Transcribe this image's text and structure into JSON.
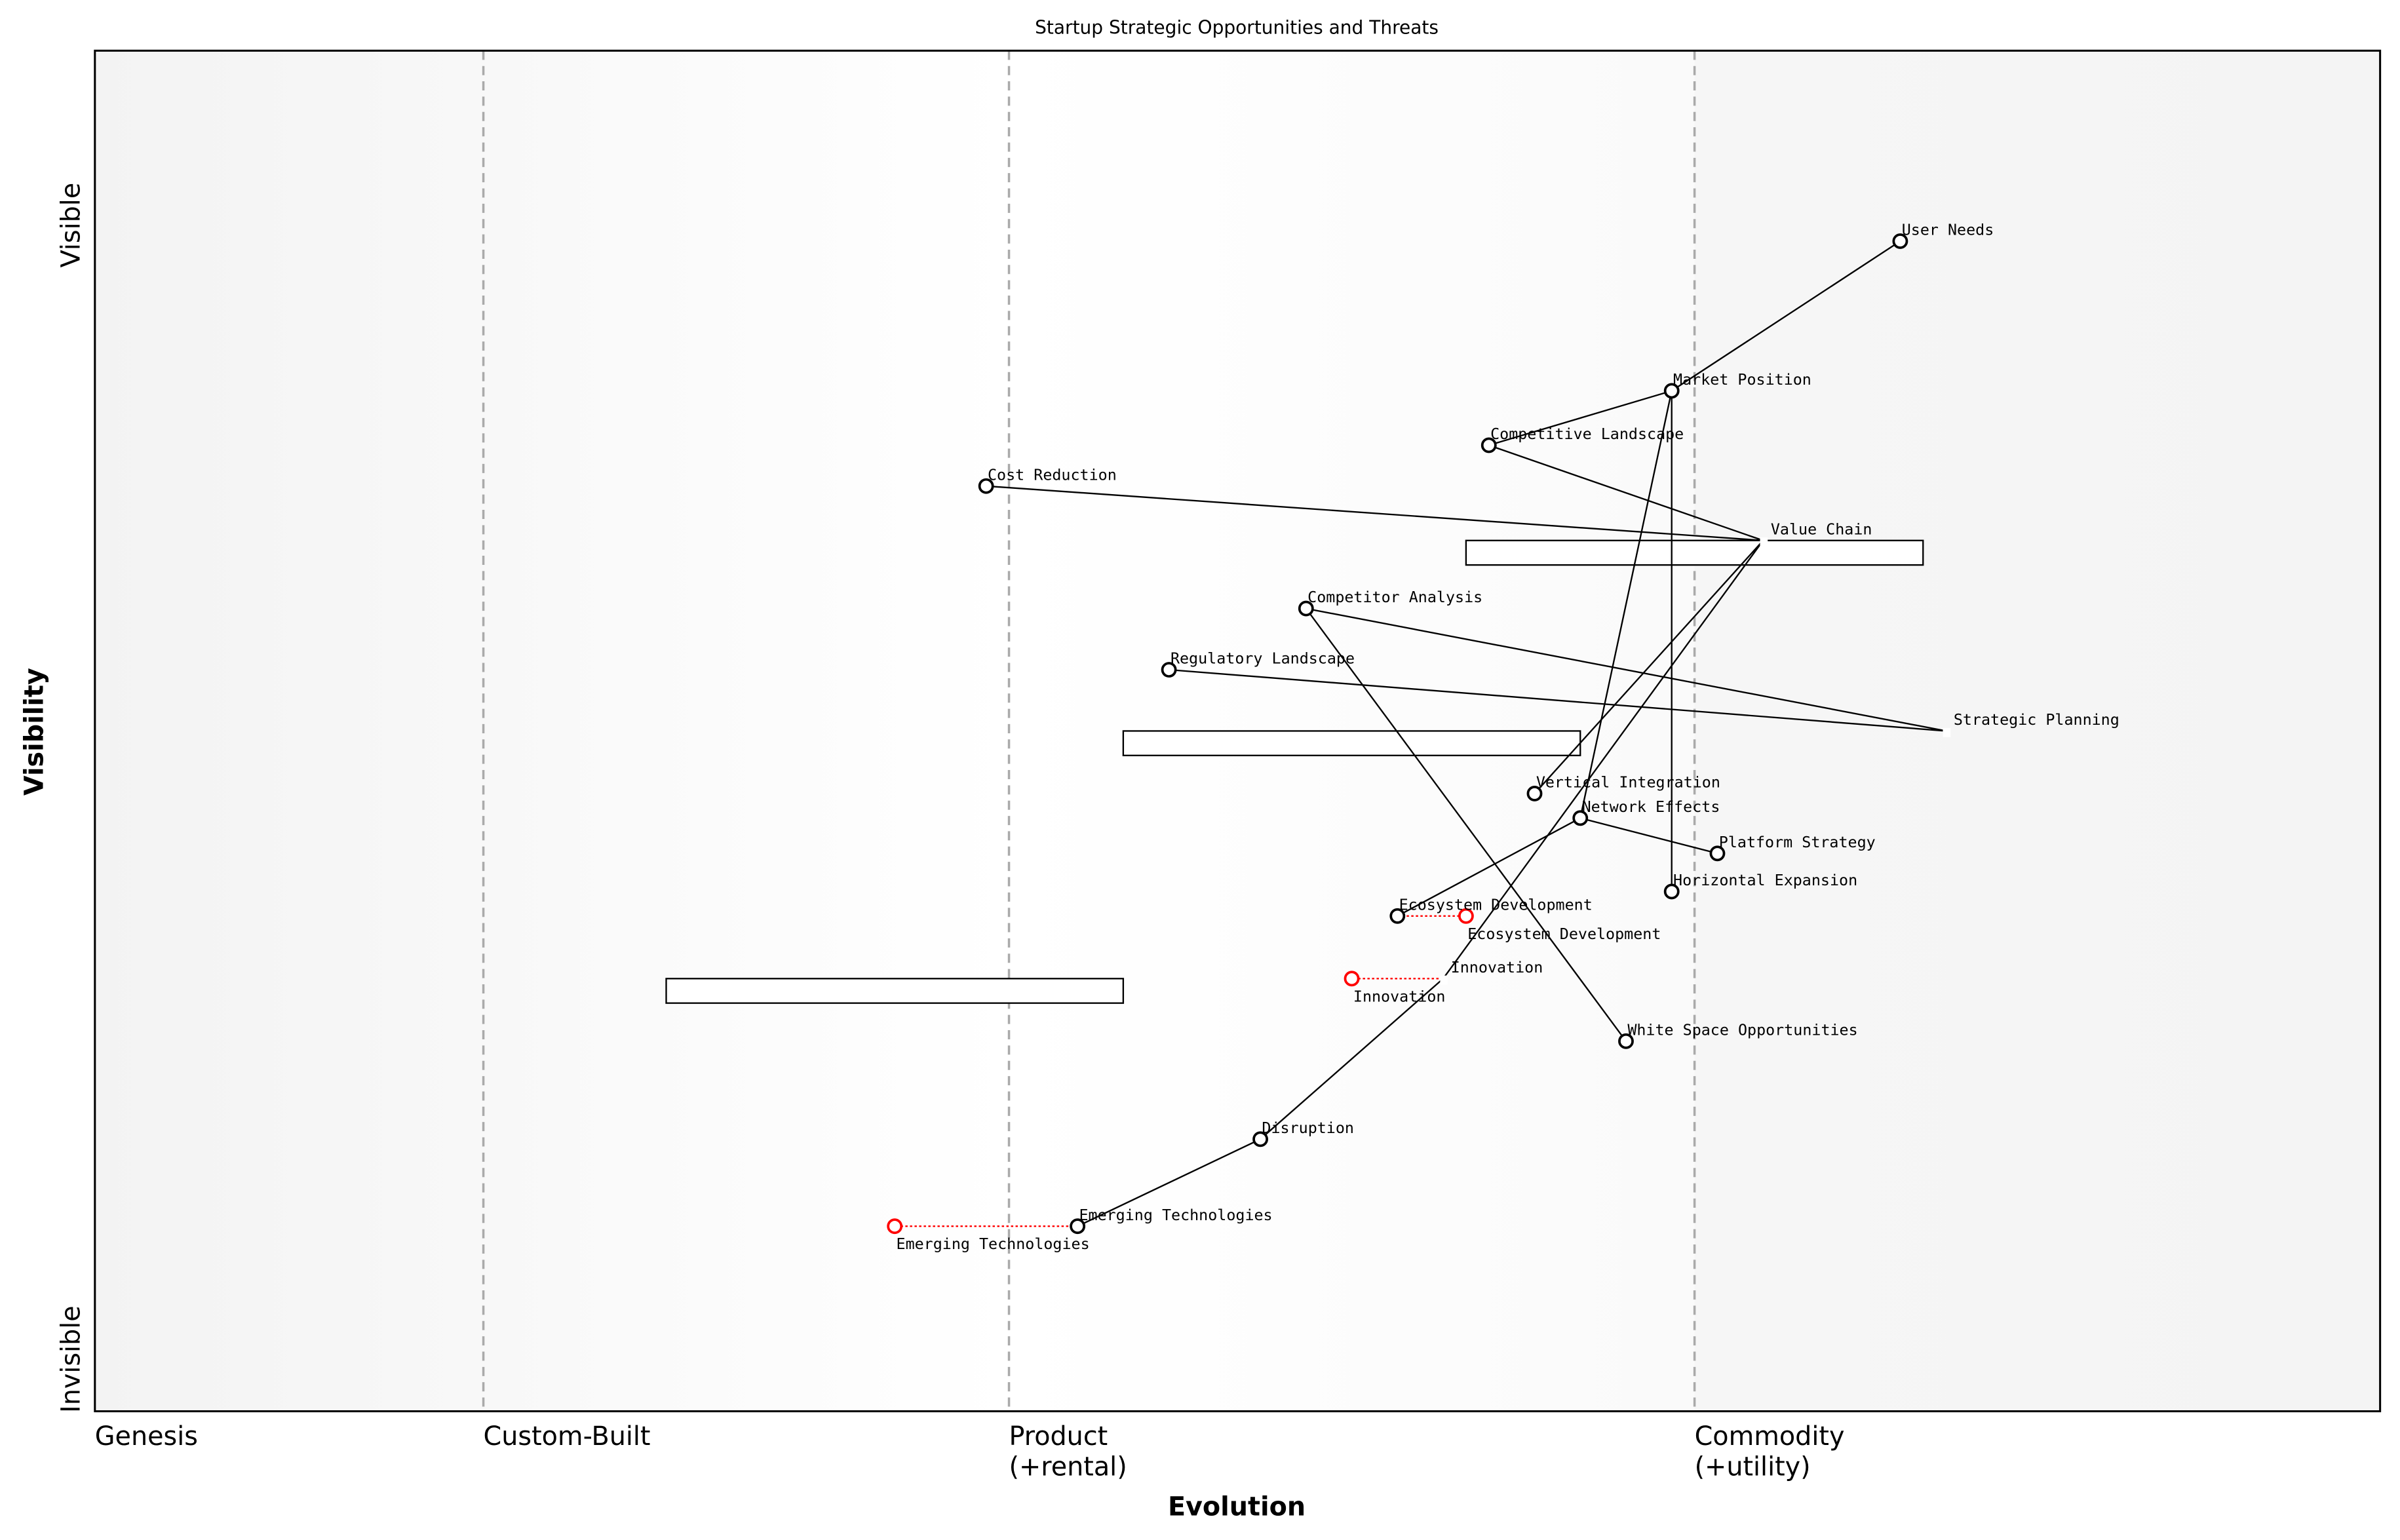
{
  "chart_data": {
    "type": "wardley-map",
    "title": "Startup Strategic Opportunities and Threats",
    "xlabel": "Evolution",
    "ylabel": "Visibility",
    "xlim": [
      0,
      1
    ],
    "ylim": [
      0,
      1
    ],
    "y_ends": {
      "top": "Visible",
      "bottom": "Invisible"
    },
    "stages": [
      {
        "label": "Genesis",
        "evolution": 0.0,
        "line": false
      },
      {
        "label": "Custom-Built",
        "evolution": 0.17,
        "line": true
      },
      {
        "label": "Product\n(+rental)",
        "evolution": 0.4,
        "line": true
      },
      {
        "label": "Commodity\n(+utility)",
        "evolution": 0.7,
        "line": true
      }
    ],
    "components": [
      {
        "name": "User Needs",
        "evolution": 0.79,
        "visibility": 0.86,
        "marker": "circle"
      },
      {
        "name": "Market Position",
        "evolution": 0.69,
        "visibility": 0.75,
        "marker": "circle"
      },
      {
        "name": "Competitive Landscape",
        "evolution": 0.61,
        "visibility": 0.71,
        "marker": "circle"
      },
      {
        "name": "Cost Reduction",
        "evolution": 0.39,
        "visibility": 0.68,
        "marker": "circle"
      },
      {
        "name": "Value Chain",
        "evolution": 0.73,
        "visibility": 0.64,
        "marker": "anchor"
      },
      {
        "name": "Competitor Analysis",
        "evolution": 0.53,
        "visibility": 0.59,
        "marker": "circle"
      },
      {
        "name": "Regulatory Landscape",
        "evolution": 0.47,
        "visibility": 0.545,
        "marker": "circle"
      },
      {
        "name": "Strategic Planning",
        "evolution": 0.81,
        "visibility": 0.5,
        "marker": "anchor"
      },
      {
        "name": "Vertical Integration",
        "evolution": 0.63,
        "visibility": 0.454,
        "marker": "circle"
      },
      {
        "name": "Network Effects",
        "evolution": 0.65,
        "visibility": 0.436,
        "marker": "circle"
      },
      {
        "name": "Platform Strategy",
        "evolution": 0.71,
        "visibility": 0.41,
        "marker": "circle"
      },
      {
        "name": "Horizontal Expansion",
        "evolution": 0.69,
        "visibility": 0.382,
        "marker": "circle"
      },
      {
        "name": "Ecosystem Development",
        "evolution": 0.57,
        "visibility": 0.364,
        "marker": "circle"
      },
      {
        "name": "Innovation",
        "evolution": 0.59,
        "visibility": 0.318,
        "marker": "anchor"
      },
      {
        "name": "White Space Opportunities",
        "evolution": 0.67,
        "visibility": 0.272,
        "marker": "circle"
      },
      {
        "name": "Disruption",
        "evolution": 0.51,
        "visibility": 0.2,
        "marker": "circle"
      },
      {
        "name": "Emerging Technologies",
        "evolution": 0.43,
        "visibility": 0.136,
        "marker": "circle"
      }
    ],
    "links": [
      [
        "User Needs",
        "Market Position"
      ],
      [
        "Market Position",
        "Competitive Landscape"
      ],
      [
        "Market Position",
        "Horizontal Expansion"
      ],
      [
        "Market Position",
        "Network Effects"
      ],
      [
        "Competitive Landscape",
        "Value Chain"
      ],
      [
        "Cost Reduction",
        "Value Chain"
      ],
      [
        "Value Chain",
        "Vertical Integration"
      ],
      [
        "Value Chain",
        "Innovation"
      ],
      [
        "Innovation",
        "Disruption"
      ],
      [
        "Disruption",
        "Emerging Technologies"
      ],
      [
        "Competitor Analysis",
        "Strategic Planning"
      ],
      [
        "Competitor Analysis",
        "White Space Opportunities"
      ],
      [
        "Regulatory Landscape",
        "Strategic Planning"
      ],
      [
        "Network Effects",
        "Platform Strategy"
      ],
      [
        "Network Effects",
        "Ecosystem Development"
      ]
    ],
    "evolutions": [
      {
        "component": "Ecosystem Development",
        "to_evolution": 0.6,
        "label": "Ecosystem Development"
      },
      {
        "component": "Innovation",
        "to_evolution": 0.55,
        "label": "Innovation"
      },
      {
        "component": "Emerging Technologies",
        "to_evolution": 0.35,
        "label": "Emerging Technologies"
      }
    ],
    "pipelines": [
      {
        "visibility": 0.64,
        "start": 0.6,
        "end": 0.8
      },
      {
        "visibility": 0.5,
        "start": 0.45,
        "end": 0.65
      },
      {
        "visibility": 0.318,
        "start": 0.25,
        "end": 0.45
      }
    ],
    "colors": {
      "component": "#000000",
      "evolved": "#ff0000",
      "stage_line": "#aaaaaa",
      "band": "#f5f5f5"
    }
  }
}
